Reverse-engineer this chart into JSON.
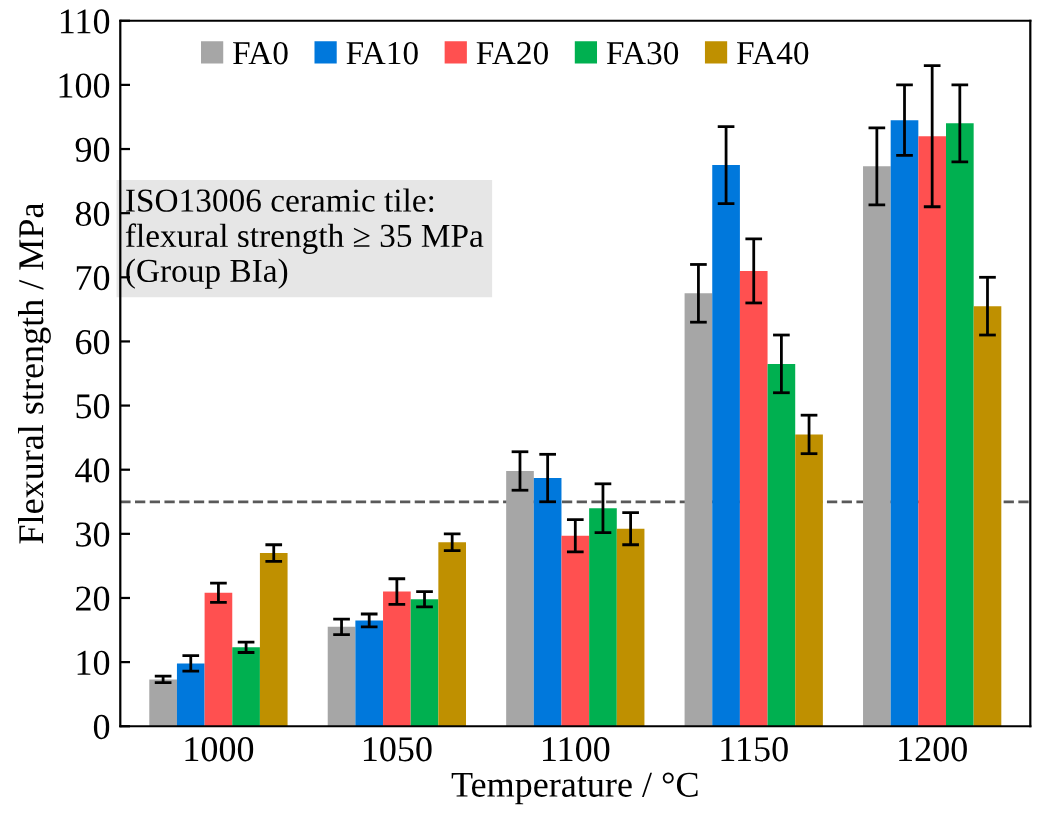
{
  "chart_data": {
    "type": "bar",
    "xlabel": "Temperature / °C",
    "ylabel": "Flexural strength / MPa",
    "categories": [
      "1000",
      "1050",
      "1100",
      "1150",
      "1200"
    ],
    "series": [
      {
        "name": "FA0",
        "color": "#a6a6a6",
        "values": [
          7.3,
          15.5,
          39.8,
          67.5,
          87.3
        ],
        "errors": [
          0.5,
          1.2,
          3,
          4.5,
          6
        ]
      },
      {
        "name": "FA10",
        "color": "#0078dc",
        "values": [
          9.8,
          16.5,
          38.7,
          87.5,
          94.5
        ],
        "errors": [
          1.2,
          1,
          3.7,
          6,
          5.5
        ]
      },
      {
        "name": "FA20",
        "color": "#ff5050",
        "values": [
          20.8,
          21,
          29.7,
          71,
          92
        ],
        "errors": [
          1.5,
          2,
          2.5,
          5,
          11
        ]
      },
      {
        "name": "FA30",
        "color": "#00b050",
        "values": [
          12.3,
          19.8,
          34,
          56.5,
          94
        ],
        "errors": [
          0.8,
          1.2,
          3.8,
          4.5,
          6
        ]
      },
      {
        "name": "FA40",
        "color": "#bf9000",
        "values": [
          27,
          28.7,
          30.8,
          45.5,
          65.5
        ],
        "errors": [
          1.3,
          1.3,
          2.5,
          3,
          4.5
        ]
      }
    ],
    "ylim": [
      0,
      110
    ],
    "yticks": [
      0,
      10,
      20,
      30,
      40,
      50,
      60,
      70,
      80,
      90,
      100,
      110
    ],
    "ref_lines": [
      {
        "axis": "y",
        "value": 35,
        "color": "#595959",
        "line_style": "dashed"
      }
    ],
    "annotations": [
      "ISO13006 ceramic tile:\nflexural strength ≥ 35 MPa\n(Group BIa)"
    ],
    "legend": "top",
    "marker": "square",
    "grid": false
  }
}
